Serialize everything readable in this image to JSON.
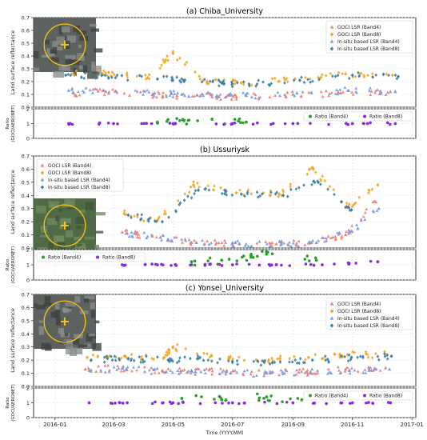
{
  "figure": {
    "xlabel": "Time (YYYY.MM)",
    "x_ticks": [
      "2016-01",
      "2016-03",
      "2016-05",
      "2016-07",
      "2016-09",
      "2016-11",
      "2017-01"
    ],
    "x_range": [
      "2015-12-10",
      "2017-01-05"
    ]
  },
  "colors": {
    "goci_band4": "#f08070",
    "goci_band8": "#f5a623",
    "insitu_band4": "#7b9be0",
    "insitu_band8": "#3a7fa8",
    "ratio_band4": "#2ca02c",
    "ratio_band8": "#8a2be2"
  },
  "chart_data": [
    {
      "type": "scatter",
      "panel_title": "(a)  Chiba_University",
      "ylabel": "Land surface reflectance",
      "ylim": [
        0,
        0.7
      ],
      "y_ticks": [
        "0.0",
        "0.1",
        "0.2",
        "0.3",
        "0.4",
        "0.5",
        "0.6",
        "0.7"
      ],
      "legend_position": "top-right",
      "inset_image": "satellite-thumbnail",
      "series": [
        {
          "name": "GOCI LSR (Band4)",
          "x": [
            "2016-01-20",
            "2016-02-22",
            "2016-04-10",
            "2016-05-05",
            "2016-06-10",
            "2016-07-05",
            "2016-09-01",
            "2016-10-20",
            "2016-12-10"
          ],
          "y": [
            0.11,
            0.12,
            0.1,
            0.09,
            0.08,
            0.08,
            0.1,
            0.11,
            0.12
          ]
        },
        {
          "name": "GOCI LSR (Band8)",
          "x": [
            "2016-01-18",
            "2016-02-25",
            "2016-04-05",
            "2016-05-01",
            "2016-06-05",
            "2016-07-10",
            "2016-09-03",
            "2016-10-25",
            "2016-12-12"
          ],
          "y": [
            0.26,
            0.27,
            0.23,
            0.42,
            0.2,
            0.19,
            0.22,
            0.26,
            0.25
          ]
        },
        {
          "name": "In-situ based LSR (Band4)",
          "x": [
            "2016-01-15",
            "2016-02-20",
            "2016-04-12",
            "2016-05-10",
            "2016-06-15",
            "2016-07-15",
            "2016-09-05",
            "2016-10-28",
            "2016-12-15"
          ],
          "y": [
            0.13,
            0.13,
            0.11,
            0.1,
            0.09,
            0.09,
            0.11,
            0.13,
            0.12
          ]
        },
        {
          "name": "In-situ based LSR (Band8)",
          "x": [
            "2016-01-12",
            "2016-02-18",
            "2016-04-15",
            "2016-05-12",
            "2016-06-20",
            "2016-07-18",
            "2016-09-08",
            "2016-11-01",
            "2016-12-18"
          ],
          "y": [
            0.25,
            0.25,
            0.22,
            0.21,
            0.19,
            0.18,
            0.21,
            0.25,
            0.24
          ]
        }
      ]
    },
    {
      "type": "scatter",
      "panel_title": "",
      "ylabel": "Ratio\n(GOCI/AERONET)",
      "ylim": [
        0,
        2
      ],
      "y_ticks": [
        "0",
        "1",
        "2"
      ],
      "legend_position": "top-right",
      "series": [
        {
          "name": "Ratio (Band4)",
          "x": [
            "2016-04-15",
            "2016-05-12",
            "2016-06-10",
            "2016-07-15"
          ],
          "y": [
            1.1,
            1.2,
            1.3,
            1.1
          ]
        },
        {
          "name": "Ratio (Band8)",
          "x": [
            "2016-01-15",
            "2016-03-01",
            "2016-05-01",
            "2016-07-01",
            "2016-09-01",
            "2016-11-01",
            "2016-12-15"
          ],
          "y": [
            1.0,
            1.0,
            1.0,
            1.0,
            1.0,
            1.0,
            1.0
          ]
        }
      ]
    },
    {
      "type": "scatter",
      "panel_title": "(b)              Ussuriysk",
      "ylabel": "Land surface reflectance",
      "ylim": [
        0,
        0.7
      ],
      "y_ticks": [
        "0.0",
        "0.1",
        "0.2",
        "0.3",
        "0.4",
        "0.5",
        "0.6",
        "0.7"
      ],
      "legend_position": "top-left",
      "inset_image": "satellite-thumbnail",
      "series": [
        {
          "name": "GOCI LSR (Band4)",
          "x": [
            "2016-03-10",
            "2016-04-10",
            "2016-05-20",
            "2016-07-01",
            "2016-08-15",
            "2016-09-20",
            "2016-10-25",
            "2016-11-25"
          ],
          "y": [
            0.12,
            0.09,
            0.04,
            0.03,
            0.03,
            0.04,
            0.1,
            0.35
          ]
        },
        {
          "name": "GOCI LSR (Band8)",
          "x": [
            "2016-03-12",
            "2016-04-15",
            "2016-05-22",
            "2016-07-05",
            "2016-08-18",
            "2016-09-22",
            "2016-10-27",
            "2016-11-27"
          ],
          "y": [
            0.26,
            0.21,
            0.48,
            0.42,
            0.41,
            0.6,
            0.31,
            0.48
          ]
        },
        {
          "name": "In-situ based LSR (Band4)",
          "x": [
            "2016-03-14",
            "2016-04-18",
            "2016-05-25",
            "2016-07-08",
            "2016-08-20",
            "2016-09-25",
            "2016-10-29",
            "2016-11-28"
          ],
          "y": [
            0.11,
            0.08,
            0.04,
            0.03,
            0.03,
            0.04,
            0.12,
            0.3
          ]
        },
        {
          "name": "In-situ based LSR (Band8)",
          "x": [
            "2016-03-16",
            "2016-04-20",
            "2016-05-27",
            "2016-07-10",
            "2016-08-22",
            "2016-09-27",
            "2016-10-31"
          ],
          "y": [
            0.25,
            0.2,
            0.44,
            0.41,
            0.4,
            0.5,
            0.29
          ]
        }
      ]
    },
    {
      "type": "scatter",
      "panel_title": "",
      "ylabel": "Ratio\n(GOCI/AERONET)",
      "ylim": [
        0,
        2
      ],
      "y_ticks": [
        "0",
        "1",
        "2"
      ],
      "legend_position": "top-left",
      "series": [
        {
          "name": "Ratio (Band4)",
          "x": [
            "2016-05-20",
            "2016-06-20",
            "2016-07-20",
            "2016-08-05",
            "2016-09-25"
          ],
          "y": [
            1.2,
            1.3,
            1.5,
            1.7,
            1.3
          ]
        },
        {
          "name": "Ratio (Band8)",
          "x": [
            "2016-03-10",
            "2016-04-15",
            "2016-05-20",
            "2016-07-01",
            "2016-08-15",
            "2016-10-01",
            "2016-11-27"
          ],
          "y": [
            1.0,
            1.0,
            1.0,
            1.0,
            1.0,
            1.0,
            1.2
          ]
        }
      ]
    },
    {
      "type": "scatter",
      "panel_title": "(c)   Yonsei_University",
      "ylabel": "Land surface reflectance",
      "ylim": [
        0,
        0.7
      ],
      "y_ticks": [
        "0.0",
        "0.1",
        "0.2",
        "0.3",
        "0.4",
        "0.5",
        "0.6",
        "0.7"
      ],
      "legend_position": "top-right",
      "inset_image": "satellite-thumbnail",
      "series": [
        {
          "name": "GOCI LSR (Band4)",
          "x": [
            "2016-02-01",
            "2016-03-10",
            "2016-04-20",
            "2016-05-20",
            "2016-06-25",
            "2016-08-05",
            "2016-09-15",
            "2016-10-25",
            "2016-12-05"
          ],
          "y": [
            0.13,
            0.14,
            0.12,
            0.12,
            0.11,
            0.1,
            0.11,
            0.13,
            0.14
          ]
        },
        {
          "name": "GOCI LSR (Band8)",
          "x": [
            "2016-02-03",
            "2016-03-12",
            "2016-04-22",
            "2016-05-01",
            "2016-06-27",
            "2016-08-07",
            "2016-09-17",
            "2016-10-27",
            "2016-12-07"
          ],
          "y": [
            0.22,
            0.23,
            0.22,
            0.3,
            0.21,
            0.2,
            0.22,
            0.24,
            0.24
          ]
        },
        {
          "name": "In-situ based LSR (Band4)",
          "x": [
            "2016-02-05",
            "2016-03-14",
            "2016-04-24",
            "2016-05-24",
            "2016-06-29",
            "2016-08-09",
            "2016-09-19",
            "2016-10-29",
            "2016-12-09"
          ],
          "y": [
            0.12,
            0.13,
            0.11,
            0.11,
            0.1,
            0.1,
            0.11,
            0.12,
            0.13
          ]
        },
        {
          "name": "In-situ based LSR (Band8)",
          "x": [
            "2016-02-07",
            "2016-03-16",
            "2016-04-26",
            "2016-05-26",
            "2016-07-01",
            "2016-08-11",
            "2016-09-21",
            "2016-10-31",
            "2016-12-11"
          ],
          "y": [
            0.2,
            0.21,
            0.2,
            0.21,
            0.19,
            0.18,
            0.2,
            0.22,
            0.23
          ]
        }
      ]
    },
    {
      "type": "scatter",
      "panel_title": "",
      "ylabel": "Ratio\n(GOCI/AERONET)",
      "ylim": [
        0,
        2
      ],
      "y_ticks": [
        "0",
        "1",
        "2"
      ],
      "legend_position": "top-right",
      "series": [
        {
          "name": "Ratio (Band4)",
          "x": [
            "2016-05-10",
            "2016-06-20",
            "2016-08-05",
            "2016-09-10"
          ],
          "y": [
            1.3,
            1.2,
            1.4,
            1.2
          ]
        },
        {
          "name": "Ratio (Band8)",
          "x": [
            "2016-02-05",
            "2016-03-15",
            "2016-05-01",
            "2016-07-01",
            "2016-09-01",
            "2016-11-01",
            "2016-12-10"
          ],
          "y": [
            1.0,
            1.0,
            1.0,
            1.0,
            1.0,
            1.0,
            1.0
          ]
        }
      ]
    }
  ]
}
